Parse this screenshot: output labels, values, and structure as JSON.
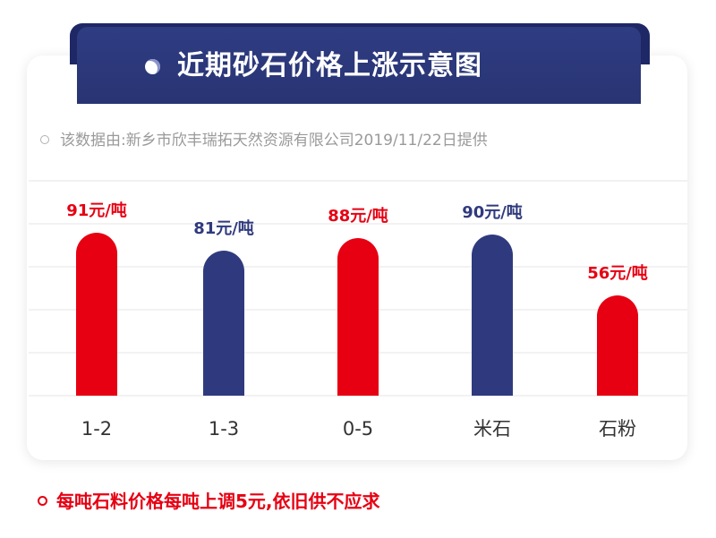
{
  "title": "近期砂石价格上涨示意图",
  "source_note": "该数据由:新乡市欣丰瑞拓天然资源有限公司2019/11/22日提供",
  "footnote": "每吨石料价格每吨上调5元,依旧供不应求",
  "colors": {
    "banner": "#2e3b80",
    "banner_tab": "#1f2866",
    "red": "#e60012",
    "navy": "#2f3a7e",
    "text": "#333333",
    "grid": "#e6e6e6"
  },
  "chart_data": {
    "type": "bar",
    "categories": [
      "1-2",
      "1-3",
      "0-5",
      "米石",
      "石粉"
    ],
    "values": [
      91,
      81,
      88,
      90,
      56
    ],
    "data_labels": [
      "91元/吨",
      "81元/吨",
      "88元/吨",
      "90元/吨",
      "56元/吨"
    ],
    "bar_colors": [
      "#e60012",
      "#2f3a7e",
      "#e60012",
      "#2f3a7e",
      "#e60012"
    ],
    "label_colors": [
      "#e60012",
      "#2f3a7e",
      "#e60012",
      "#2f3a7e",
      "#e60012"
    ],
    "unit": "元/吨",
    "ylim": [
      0,
      120
    ],
    "grid": true,
    "legend": "none",
    "xlabel": "",
    "ylabel": ""
  }
}
